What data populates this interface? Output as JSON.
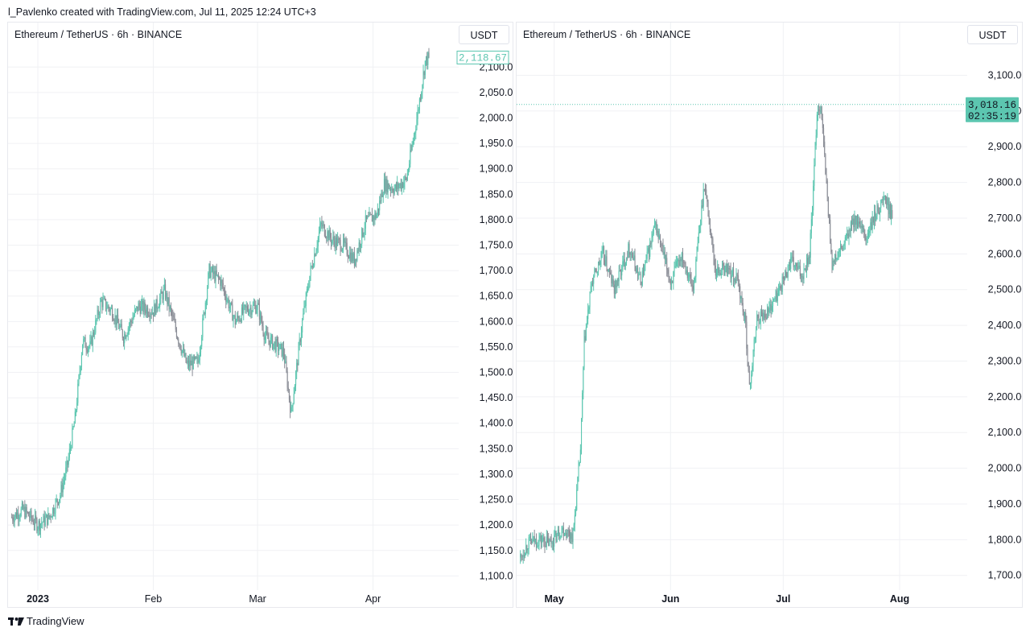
{
  "header": {
    "text": "l_Pavlenko created with TradingView.com, Jul 11, 2025 12:24 UTC+3"
  },
  "footer": {
    "logo_text": "TradingView",
    "logo_icon": "tradingview-logo-icon"
  },
  "colors": {
    "up": "#5cc6b0",
    "down": "#8a8d96",
    "grid": "#f0f1f4",
    "last_price": "#5cc6b0"
  },
  "chart_data": [
    {
      "type": "candlestick",
      "title": "Ethereum / TetherUS · 6h · BINANCE",
      "unit": "USDT",
      "last_price": "2,118.67",
      "ylim": [
        1080,
        2140
      ],
      "y_ticks": [
        "1,100.00",
        "1,150.00",
        "1,200.00",
        "1,250.00",
        "1,300.00",
        "1,350.00",
        "1,400.00",
        "1,450.00",
        "1,500.00",
        "1,550.00",
        "1,600.00",
        "1,650.00",
        "1,700.00",
        "1,750.00",
        "1,800.00",
        "1,850.00",
        "1,900.00",
        "1,950.00",
        "2,000.00",
        "2,050.00",
        "2,100.00"
      ],
      "x_ticks": [
        {
          "label": "2023",
          "date": "2023-01-01",
          "bold": true
        },
        {
          "label": "Feb",
          "date": "2023-02-01",
          "bold": false
        },
        {
          "label": "Mar",
          "date": "2023-03-01",
          "bold": false
        },
        {
          "label": "Apr",
          "date": "2023-04-01",
          "bold": false
        }
      ],
      "x_range": [
        "2022-12-24",
        "2023-04-24"
      ],
      "series_anchors": [
        [
          "2022-12-25",
          1215
        ],
        [
          "2022-12-28",
          1230
        ],
        [
          "2023-01-01",
          1200
        ],
        [
          "2023-01-04",
          1215
        ],
        [
          "2023-01-07",
          1260
        ],
        [
          "2023-01-09",
          1320
        ],
        [
          "2023-01-11",
          1410
        ],
        [
          "2023-01-13",
          1560
        ],
        [
          "2023-01-15",
          1550
        ],
        [
          "2023-01-18",
          1640
        ],
        [
          "2023-01-21",
          1620
        ],
        [
          "2023-01-24",
          1570
        ],
        [
          "2023-01-28",
          1630
        ],
        [
          "2023-02-01",
          1620
        ],
        [
          "2023-02-04",
          1660
        ],
        [
          "2023-02-08",
          1560
        ],
        [
          "2023-02-10",
          1515
        ],
        [
          "2023-02-13",
          1520
        ],
        [
          "2023-02-16",
          1700
        ],
        [
          "2023-02-19",
          1680
        ],
        [
          "2023-02-23",
          1600
        ],
        [
          "2023-02-26",
          1625
        ],
        [
          "2023-03-01",
          1630
        ],
        [
          "2023-03-03",
          1570
        ],
        [
          "2023-03-08",
          1540
        ],
        [
          "2023-03-10",
          1420
        ],
        [
          "2023-03-13",
          1600
        ],
        [
          "2023-03-15",
          1690
        ],
        [
          "2023-03-18",
          1790
        ],
        [
          "2023-03-21",
          1760
        ],
        [
          "2023-03-24",
          1750
        ],
        [
          "2023-03-27",
          1720
        ],
        [
          "2023-03-30",
          1795
        ],
        [
          "2023-04-02",
          1810
        ],
        [
          "2023-04-04",
          1870
        ],
        [
          "2023-04-07",
          1860
        ],
        [
          "2023-04-10",
          1880
        ],
        [
          "2023-04-13",
          2010
        ],
        [
          "2023-04-15",
          2110
        ],
        [
          "2023-04-16",
          2118.67
        ]
      ]
    },
    {
      "type": "candlestick",
      "title": "Ethereum / TetherUS · 6h · BINANCE",
      "unit": "USDT",
      "last_price": "3,018.16",
      "countdown": "02:35:19",
      "ylim": [
        1670,
        3180
      ],
      "y_ticks": [
        "1,700.00",
        "1,800.00",
        "1,900.00",
        "2,000.00",
        "2,100.00",
        "2,200.00",
        "2,300.00",
        "2,400.00",
        "2,500.00",
        "2,600.00",
        "2,700.00",
        "2,800.00",
        "2,900.00",
        "3,000.00",
        "3,100.00"
      ],
      "x_ticks": [
        {
          "label": "May",
          "date": "2025-05-01",
          "bold": true
        },
        {
          "label": "Jun",
          "date": "2025-06-01",
          "bold": true
        },
        {
          "label": "Jul",
          "date": "2025-07-01",
          "bold": true
        },
        {
          "label": "Aug",
          "date": "2025-08-01",
          "bold": true
        }
      ],
      "x_range": [
        "2025-04-21",
        "2025-08-19"
      ],
      "series_anchors": [
        [
          "2025-04-22",
          1750
        ],
        [
          "2025-04-24",
          1790
        ],
        [
          "2025-04-27",
          1800
        ],
        [
          "2025-04-30",
          1790
        ],
        [
          "2025-05-03",
          1830
        ],
        [
          "2025-05-06",
          1810
        ],
        [
          "2025-05-08",
          2050
        ],
        [
          "2025-05-09",
          2350
        ],
        [
          "2025-05-11",
          2520
        ],
        [
          "2025-05-14",
          2600
        ],
        [
          "2025-05-17",
          2500
        ],
        [
          "2025-05-21",
          2620
        ],
        [
          "2025-05-24",
          2520
        ],
        [
          "2025-05-28",
          2680
        ],
        [
          "2025-06-01",
          2520
        ],
        [
          "2025-06-04",
          2600
        ],
        [
          "2025-06-07",
          2500
        ],
        [
          "2025-06-10",
          2800
        ],
        [
          "2025-06-13",
          2550
        ],
        [
          "2025-06-16",
          2560
        ],
        [
          "2025-06-19",
          2520
        ],
        [
          "2025-06-21",
          2400
        ],
        [
          "2025-06-22",
          2220
        ],
        [
          "2025-06-24",
          2420
        ],
        [
          "2025-06-27",
          2440
        ],
        [
          "2025-06-30",
          2500
        ],
        [
          "2025-07-03",
          2580
        ],
        [
          "2025-07-06",
          2540
        ],
        [
          "2025-07-08",
          2600
        ],
        [
          "2025-07-09",
          2780
        ],
        [
          "2025-07-10",
          3000
        ],
        [
          "2025-07-11",
          3018.16
        ],
        [
          "2025-07-14",
          2570
        ],
        [
          "2025-07-17",
          2620
        ],
        [
          "2025-07-20",
          2700
        ],
        [
          "2025-07-23",
          2640
        ],
        [
          "2025-07-26",
          2720
        ],
        [
          "2025-07-28",
          2760
        ],
        [
          "2025-07-30",
          2700
        ]
      ]
    }
  ]
}
